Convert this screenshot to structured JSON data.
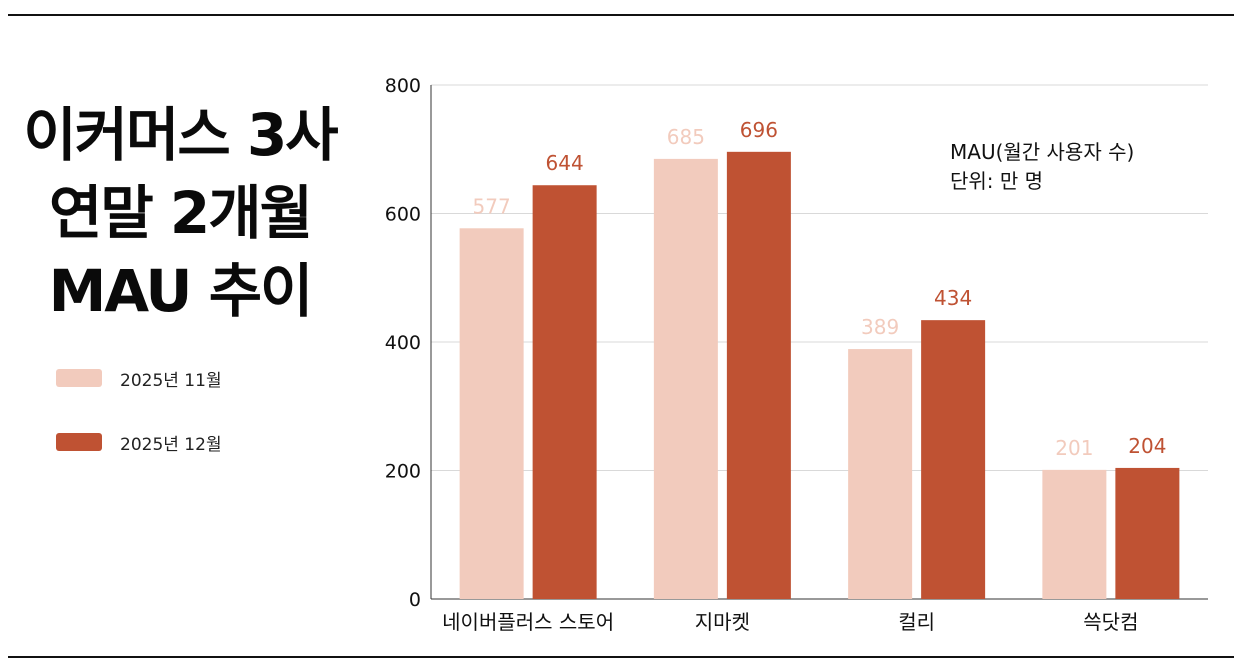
{
  "title_lines": [
    "이커머스 3사",
    "연말 2개월",
    "MAU 추이"
  ],
  "note": {
    "line1": "MAU(월간 사용자 수)",
    "line2": "단위: 만 명"
  },
  "colors": {
    "nov": "#f2cbbd",
    "dec": "#bf5233",
    "grid": "#d9d9d9",
    "axis": "#333333"
  },
  "chart_data": {
    "type": "bar",
    "categories": [
      "네이버플러스 스토어",
      "지마켓",
      "컬리",
      "쓱닷컴"
    ],
    "series": [
      {
        "name": "2025년 11월",
        "values": [
          577,
          685,
          389,
          201
        ]
      },
      {
        "name": "2025년 12월",
        "values": [
          644,
          696,
          434,
          204
        ]
      }
    ],
    "yticks": [
      0,
      200,
      400,
      600,
      800
    ],
    "ylim": [
      0,
      800
    ],
    "grid": true,
    "legend": "left"
  }
}
